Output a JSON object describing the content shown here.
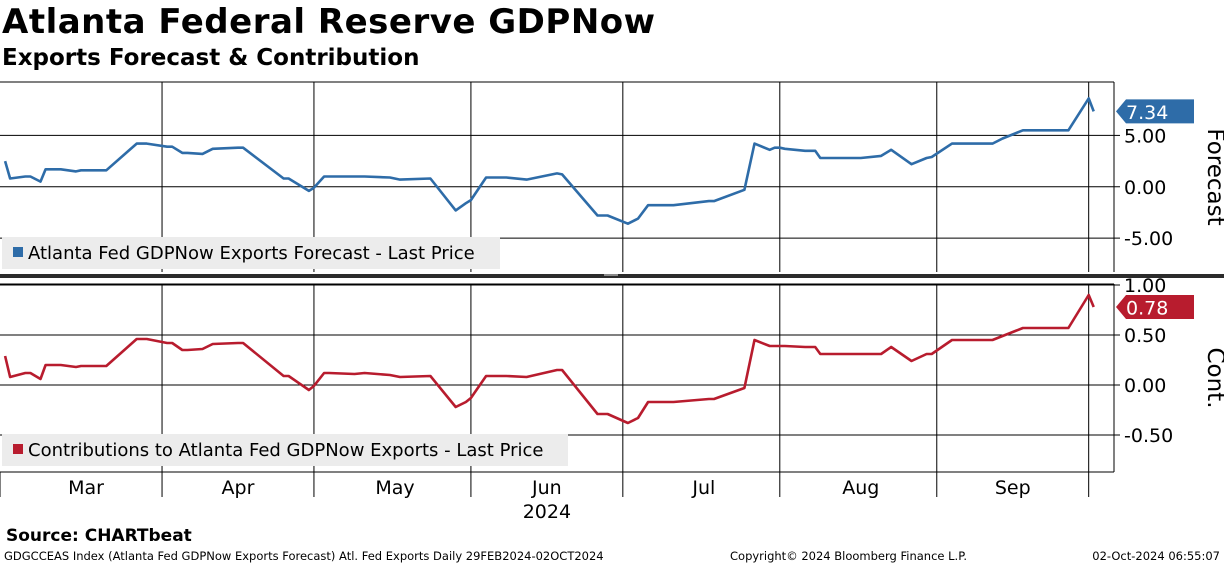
{
  "title": "Atlanta Federal Reserve GDPNow",
  "subtitle": "Exports Forecast & Contribution",
  "source": "Source:  CHARTbeat",
  "footer": {
    "left": "GDGCCEAS Index (Atlanta Fed GDPNow Exports Forecast) Atl. Fed Exports  Daily 29FEB2024-02OCT2024",
    "center": "Copyright© 2024 Bloomberg Finance L.P.",
    "right": "02-Oct-2024 06:55:07"
  },
  "chart_data": [
    {
      "type": "line",
      "panel": "top",
      "ylabel": "Forecast",
      "ylim": [
        -8.3,
        10.2
      ],
      "yticks": [
        -5,
        0,
        5
      ],
      "ytick_labels": [
        "-5.00",
        "0.00",
        "5.00"
      ],
      "grid": true,
      "legend": "bottom-left",
      "color": "#2e6ca8",
      "last_value_label": "7.34",
      "series": [
        {
          "name": "Atlanta Fed GDPNow Exports Forecast - Last Price",
          "x": [
            "2024-02-29",
            "2024-03-01",
            "2024-03-04",
            "2024-03-05",
            "2024-03-07",
            "2024-03-08",
            "2024-03-11",
            "2024-03-14",
            "2024-03-15",
            "2024-03-20",
            "2024-03-26",
            "2024-03-28",
            "2024-04-01",
            "2024-04-02",
            "2024-04-04",
            "2024-04-05",
            "2024-04-08",
            "2024-04-10",
            "2024-04-15",
            "2024-04-16",
            "2024-04-24",
            "2024-04-25",
            "2024-04-29",
            "2024-04-30",
            "2024-05-02",
            "2024-05-03",
            "2024-05-08",
            "2024-05-10",
            "2024-05-15",
            "2024-05-17",
            "2024-05-23",
            "2024-05-28",
            "2024-05-30",
            "2024-05-31",
            "2024-06-03",
            "2024-06-07",
            "2024-06-11",
            "2024-06-17",
            "2024-06-18",
            "2024-06-25",
            "2024-06-27",
            "2024-07-01",
            "2024-07-03",
            "2024-07-05",
            "2024-07-09",
            "2024-07-10",
            "2024-07-17",
            "2024-07-18",
            "2024-07-24",
            "2024-07-26",
            "2024-07-29",
            "2024-07-30",
            "2024-07-31",
            "2024-08-01",
            "2024-08-05",
            "2024-08-06",
            "2024-08-07",
            "2024-08-08",
            "2024-08-14",
            "2024-08-16",
            "2024-08-20",
            "2024-08-22",
            "2024-08-26",
            "2024-08-29",
            "2024-08-30",
            "2024-09-03",
            "2024-09-04",
            "2024-09-06",
            "2024-09-09",
            "2024-09-11",
            "2024-09-13",
            "2024-09-17",
            "2024-09-18",
            "2024-09-19",
            "2024-09-26",
            "2024-09-30",
            "2024-10-01"
          ],
          "values": [
            2.5,
            0.8,
            1.0,
            1.0,
            0.5,
            1.7,
            1.7,
            1.5,
            1.6,
            1.6,
            4.2,
            4.2,
            3.9,
            3.9,
            3.3,
            3.3,
            3.2,
            3.7,
            3.8,
            3.8,
            0.8,
            0.8,
            -0.4,
            -0.1,
            1.0,
            1.0,
            1.0,
            1.0,
            0.9,
            0.7,
            0.8,
            -2.3,
            -1.6,
            -1.3,
            0.9,
            0.9,
            0.7,
            1.3,
            1.2,
            -2.8,
            -2.8,
            -3.6,
            -3.1,
            -1.8,
            -1.8,
            -1.8,
            -1.4,
            -1.4,
            -0.3,
            4.2,
            3.6,
            3.8,
            3.8,
            3.7,
            3.5,
            3.5,
            3.5,
            2.8,
            2.8,
            2.8,
            3.0,
            3.6,
            2.2,
            2.8,
            2.9,
            4.2,
            4.2,
            4.2,
            4.2,
            4.2,
            4.7,
            5.5,
            5.5,
            5.5,
            5.5,
            8.6,
            7.34
          ]
        }
      ]
    },
    {
      "type": "line",
      "panel": "bottom",
      "ylabel": "Cont.",
      "ylim": [
        -0.87,
        1.01
      ],
      "yticks": [
        -0.5,
        0,
        0.5,
        1.0
      ],
      "ytick_labels": [
        "-0.50",
        "0.00",
        "0.50",
        "1.00"
      ],
      "grid": true,
      "legend": "bottom-left",
      "color": "#b81c2e",
      "last_value_label": "0.78",
      "series": [
        {
          "name": "Contributions to Atlanta Fed GDPNow Exports - Last Price",
          "x": [
            "2024-02-29",
            "2024-03-01",
            "2024-03-04",
            "2024-03-05",
            "2024-03-07",
            "2024-03-08",
            "2024-03-11",
            "2024-03-14",
            "2024-03-15",
            "2024-03-20",
            "2024-03-26",
            "2024-03-28",
            "2024-04-01",
            "2024-04-02",
            "2024-04-04",
            "2024-04-05",
            "2024-04-08",
            "2024-04-10",
            "2024-04-15",
            "2024-04-16",
            "2024-04-24",
            "2024-04-25",
            "2024-04-29",
            "2024-04-30",
            "2024-05-02",
            "2024-05-03",
            "2024-05-08",
            "2024-05-10",
            "2024-05-15",
            "2024-05-17",
            "2024-05-23",
            "2024-05-28",
            "2024-05-30",
            "2024-05-31",
            "2024-06-03",
            "2024-06-07",
            "2024-06-11",
            "2024-06-17",
            "2024-06-18",
            "2024-06-25",
            "2024-06-27",
            "2024-07-01",
            "2024-07-03",
            "2024-07-05",
            "2024-07-09",
            "2024-07-10",
            "2024-07-17",
            "2024-07-18",
            "2024-07-24",
            "2024-07-26",
            "2024-07-29",
            "2024-07-30",
            "2024-07-31",
            "2024-08-01",
            "2024-08-05",
            "2024-08-06",
            "2024-08-07",
            "2024-08-08",
            "2024-08-14",
            "2024-08-16",
            "2024-08-20",
            "2024-08-22",
            "2024-08-26",
            "2024-08-29",
            "2024-08-30",
            "2024-09-03",
            "2024-09-04",
            "2024-09-06",
            "2024-09-09",
            "2024-09-11",
            "2024-09-13",
            "2024-09-17",
            "2024-09-18",
            "2024-09-19",
            "2024-09-26",
            "2024-09-30",
            "2024-10-01"
          ],
          "values": [
            0.29,
            0.08,
            0.12,
            0.12,
            0.06,
            0.2,
            0.2,
            0.18,
            0.19,
            0.19,
            0.46,
            0.46,
            0.42,
            0.42,
            0.35,
            0.35,
            0.36,
            0.41,
            0.42,
            0.42,
            0.09,
            0.09,
            -0.05,
            -0.01,
            0.12,
            0.12,
            0.11,
            0.12,
            0.1,
            0.08,
            0.09,
            -0.22,
            -0.17,
            -0.13,
            0.09,
            0.09,
            0.08,
            0.15,
            0.15,
            -0.29,
            -0.29,
            -0.38,
            -0.33,
            -0.17,
            -0.17,
            -0.17,
            -0.14,
            -0.14,
            -0.03,
            0.45,
            0.39,
            0.39,
            0.39,
            0.39,
            0.38,
            0.38,
            0.38,
            0.31,
            0.31,
            0.31,
            0.31,
            0.38,
            0.24,
            0.31,
            0.31,
            0.45,
            0.45,
            0.45,
            0.45,
            0.45,
            0.49,
            0.57,
            0.57,
            0.57,
            0.57,
            0.9,
            0.78
          ]
        }
      ]
    }
  ],
  "x_axis": {
    "months": [
      {
        "label": "Mar",
        "mid": "2024-03-16"
      },
      {
        "label": "Apr",
        "mid": "2024-04-15"
      },
      {
        "label": "May",
        "mid": "2024-05-16"
      },
      {
        "label": "Jun",
        "mid": "2024-06-15"
      },
      {
        "label": "Jul",
        "mid": "2024-07-16"
      },
      {
        "label": "Aug",
        "mid": "2024-08-16"
      },
      {
        "label": "Sep",
        "mid": "2024-09-15"
      }
    ],
    "gridlines": [
      "2024-03-31",
      "2024-04-30",
      "2024-05-31",
      "2024-06-30",
      "2024-07-31",
      "2024-08-31",
      "2024-09-30"
    ],
    "year_label": "2024",
    "year_anchor": "2024-06-15"
  }
}
